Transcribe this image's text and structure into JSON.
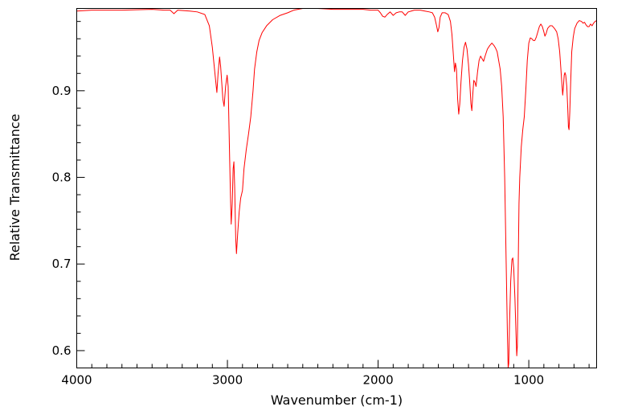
{
  "chart_data": {
    "type": "line",
    "title": "",
    "xlabel": "Wavenumber (cm-1)",
    "ylabel": "Relative Transmittance",
    "x_reversed": true,
    "xlim": [
      4000,
      550
    ],
    "ylim": [
      0.58,
      0.995
    ],
    "x_ticks": [
      4000,
      3000,
      2000,
      1000
    ],
    "x_tick_labels": [
      "4000",
      "3000",
      "2000",
      "1000"
    ],
    "y_ticks": [
      0.6,
      0.7,
      0.8,
      0.9
    ],
    "y_tick_labels": [
      "0.6",
      "0.7",
      "0.8",
      "0.9"
    ],
    "grid": false,
    "legend": "none",
    "series": [
      {
        "color": "#ff0000",
        "points": [
          [
            4000,
            0.992
          ],
          [
            3900,
            0.993
          ],
          [
            3700,
            0.993
          ],
          [
            3500,
            0.994
          ],
          [
            3420,
            0.993
          ],
          [
            3380,
            0.993
          ],
          [
            3355,
            0.989
          ],
          [
            3330,
            0.993
          ],
          [
            3250,
            0.992
          ],
          [
            3200,
            0.991
          ],
          [
            3150,
            0.988
          ],
          [
            3120,
            0.975
          ],
          [
            3100,
            0.95
          ],
          [
            3080,
            0.915
          ],
          [
            3070,
            0.898
          ],
          [
            3062,
            0.92
          ],
          [
            3052,
            0.939
          ],
          [
            3045,
            0.928
          ],
          [
            3030,
            0.89
          ],
          [
            3022,
            0.882
          ],
          [
            3012,
            0.905
          ],
          [
            3002,
            0.918
          ],
          [
            2995,
            0.905
          ],
          [
            2985,
            0.82
          ],
          [
            2980,
            0.78
          ],
          [
            2975,
            0.746
          ],
          [
            2968,
            0.77
          ],
          [
            2962,
            0.81
          ],
          [
            2957,
            0.818
          ],
          [
            2952,
            0.79
          ],
          [
            2945,
            0.73
          ],
          [
            2940,
            0.712
          ],
          [
            2932,
            0.735
          ],
          [
            2922,
            0.76
          ],
          [
            2912,
            0.776
          ],
          [
            2900,
            0.785
          ],
          [
            2890,
            0.81
          ],
          [
            2875,
            0.832
          ],
          [
            2860,
            0.85
          ],
          [
            2845,
            0.87
          ],
          [
            2830,
            0.9
          ],
          [
            2820,
            0.925
          ],
          [
            2805,
            0.945
          ],
          [
            2790,
            0.958
          ],
          [
            2770,
            0.967
          ],
          [
            2740,
            0.975
          ],
          [
            2700,
            0.982
          ],
          [
            2650,
            0.987
          ],
          [
            2600,
            0.99
          ],
          [
            2560,
            0.993
          ],
          [
            2500,
            0.995
          ],
          [
            2400,
            0.995
          ],
          [
            2300,
            0.994
          ],
          [
            2200,
            0.994
          ],
          [
            2100,
            0.994
          ],
          [
            2050,
            0.993
          ],
          [
            2000,
            0.993
          ],
          [
            1985,
            0.99
          ],
          [
            1970,
            0.986
          ],
          [
            1955,
            0.985
          ],
          [
            1940,
            0.988
          ],
          [
            1920,
            0.991
          ],
          [
            1900,
            0.987
          ],
          [
            1880,
            0.99
          ],
          [
            1860,
            0.991
          ],
          [
            1840,
            0.991
          ],
          [
            1820,
            0.987
          ],
          [
            1800,
            0.991
          ],
          [
            1780,
            0.992
          ],
          [
            1760,
            0.993
          ],
          [
            1720,
            0.993
          ],
          [
            1690,
            0.992
          ],
          [
            1660,
            0.991
          ],
          [
            1640,
            0.99
          ],
          [
            1625,
            0.985
          ],
          [
            1612,
            0.975
          ],
          [
            1604,
            0.968
          ],
          [
            1596,
            0.973
          ],
          [
            1588,
            0.985
          ],
          [
            1575,
            0.99
          ],
          [
            1555,
            0.99
          ],
          [
            1535,
            0.988
          ],
          [
            1520,
            0.98
          ],
          [
            1510,
            0.965
          ],
          [
            1500,
            0.94
          ],
          [
            1493,
            0.922
          ],
          [
            1487,
            0.932
          ],
          [
            1480,
            0.925
          ],
          [
            1472,
            0.89
          ],
          [
            1465,
            0.873
          ],
          [
            1458,
            0.885
          ],
          [
            1450,
            0.91
          ],
          [
            1440,
            0.935
          ],
          [
            1430,
            0.95
          ],
          [
            1420,
            0.956
          ],
          [
            1410,
            0.948
          ],
          [
            1400,
            0.93
          ],
          [
            1392,
            0.91
          ],
          [
            1384,
            0.885
          ],
          [
            1378,
            0.877
          ],
          [
            1372,
            0.895
          ],
          [
            1365,
            0.912
          ],
          [
            1358,
            0.91
          ],
          [
            1350,
            0.905
          ],
          [
            1340,
            0.922
          ],
          [
            1330,
            0.935
          ],
          [
            1320,
            0.94
          ],
          [
            1310,
            0.937
          ],
          [
            1300,
            0.934
          ],
          [
            1290,
            0.94
          ],
          [
            1275,
            0.948
          ],
          [
            1260,
            0.952
          ],
          [
            1245,
            0.955
          ],
          [
            1230,
            0.952
          ],
          [
            1220,
            0.949
          ],
          [
            1210,
            0.945
          ],
          [
            1200,
            0.935
          ],
          [
            1190,
            0.925
          ],
          [
            1180,
            0.905
          ],
          [
            1170,
            0.87
          ],
          [
            1160,
            0.8
          ],
          [
            1150,
            0.7
          ],
          [
            1142,
            0.62
          ],
          [
            1137,
            0.58
          ],
          [
            1133,
            0.585
          ],
          [
            1128,
            0.63
          ],
          [
            1120,
            0.68
          ],
          [
            1112,
            0.705
          ],
          [
            1106,
            0.707
          ],
          [
            1100,
            0.695
          ],
          [
            1092,
            0.66
          ],
          [
            1085,
            0.62
          ],
          [
            1080,
            0.594
          ],
          [
            1076,
            0.605
          ],
          [
            1070,
            0.7
          ],
          [
            1065,
            0.77
          ],
          [
            1060,
            0.8
          ],
          [
            1050,
            0.835
          ],
          [
            1040,
            0.855
          ],
          [
            1030,
            0.87
          ],
          [
            1020,
            0.9
          ],
          [
            1010,
            0.935
          ],
          [
            1000,
            0.955
          ],
          [
            990,
            0.961
          ],
          [
            980,
            0.96
          ],
          [
            970,
            0.958
          ],
          [
            960,
            0.958
          ],
          [
            950,
            0.962
          ],
          [
            940,
            0.968
          ],
          [
            930,
            0.974
          ],
          [
            920,
            0.977
          ],
          [
            910,
            0.974
          ],
          [
            900,
            0.968
          ],
          [
            893,
            0.963
          ],
          [
            885,
            0.966
          ],
          [
            875,
            0.972
          ],
          [
            860,
            0.975
          ],
          [
            845,
            0.975
          ],
          [
            830,
            0.972
          ],
          [
            815,
            0.968
          ],
          [
            805,
            0.96
          ],
          [
            795,
            0.945
          ],
          [
            787,
            0.925
          ],
          [
            780,
            0.907
          ],
          [
            775,
            0.895
          ],
          [
            770,
            0.905
          ],
          [
            765,
            0.918
          ],
          [
            760,
            0.921
          ],
          [
            755,
            0.918
          ],
          [
            748,
            0.905
          ],
          [
            742,
            0.882
          ],
          [
            737,
            0.858
          ],
          [
            733,
            0.855
          ],
          [
            728,
            0.875
          ],
          [
            722,
            0.91
          ],
          [
            715,
            0.945
          ],
          [
            705,
            0.962
          ],
          [
            695,
            0.972
          ],
          [
            680,
            0.978
          ],
          [
            665,
            0.981
          ],
          [
            650,
            0.98
          ],
          [
            640,
            0.978
          ],
          [
            630,
            0.979
          ],
          [
            620,
            0.976
          ],
          [
            610,
            0.974
          ],
          [
            600,
            0.974
          ],
          [
            590,
            0.977
          ],
          [
            580,
            0.975
          ],
          [
            570,
            0.978
          ],
          [
            560,
            0.98
          ],
          [
            550,
            0.981
          ]
        ]
      }
    ]
  }
}
